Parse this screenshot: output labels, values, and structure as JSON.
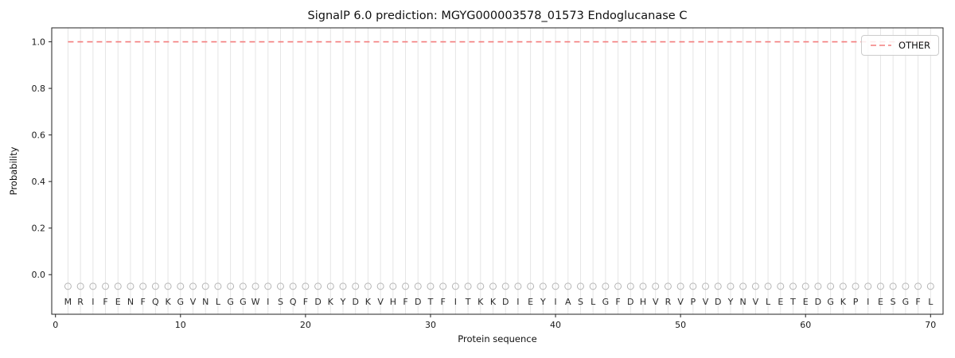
{
  "figure": {
    "title": "SignalP 6.0 prediction: MGYG000003578_01573 Endoglucanase C"
  },
  "legend": {
    "label": "OTHER"
  },
  "chart_data": {
    "type": "line",
    "title": "SignalP 6.0 prediction: MGYG000003578_01573 Endoglucanase C",
    "xlabel": "Protein sequence",
    "ylabel": "Probability",
    "xlim": [
      -0.3,
      71.0
    ],
    "ylim": [
      -0.17,
      1.06
    ],
    "xticks": [
      0,
      10,
      20,
      30,
      40,
      50,
      60,
      70
    ],
    "yticks": [
      0.0,
      0.2,
      0.4,
      0.6,
      0.8,
      1.0
    ],
    "grid": {
      "vertical_line_per_residue": true,
      "color": "#e5e5e5"
    },
    "sequence": "MRIFENFQKGVNLGGWISQFDKYDKVHFDTFITKKDIEYIASLGFDHVRVPVDYNVLETEDGKPIESGFL",
    "series": [
      {
        "name": "OTHER",
        "style": "dashed",
        "color": "#f47c7c",
        "constant_value": 1.0,
        "x_start": 1,
        "x_end": 70
      }
    ],
    "residue_markers": {
      "y": -0.05,
      "shape": "open-circle",
      "color": "#b5b5b5"
    },
    "letters_y": -0.115,
    "legend": {
      "position": "upper right",
      "entries": [
        "OTHER"
      ]
    },
    "spine_color": "#222222"
  }
}
